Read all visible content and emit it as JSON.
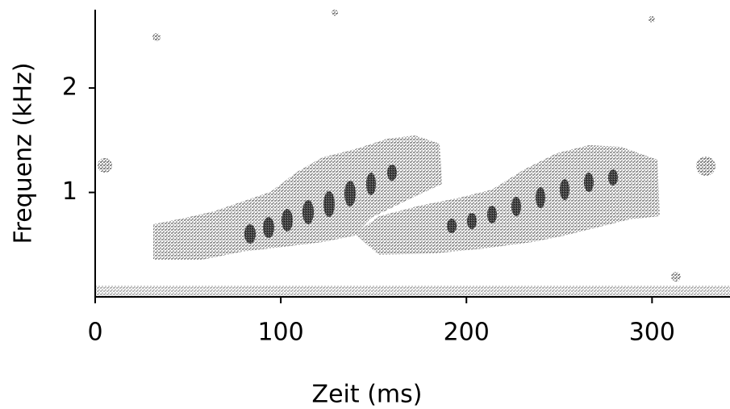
{
  "chart_data": {
    "type": "spectrogram",
    "xlabel": "Zeit  (ms)",
    "ylabel": "Frequenz  (kHz)",
    "xlim": [
      0,
      342
    ],
    "xticks": [
      0,
      100,
      200,
      300
    ],
    "ylim": [
      0,
      2.75
    ],
    "yticks": [
      1,
      2
    ]
  }
}
